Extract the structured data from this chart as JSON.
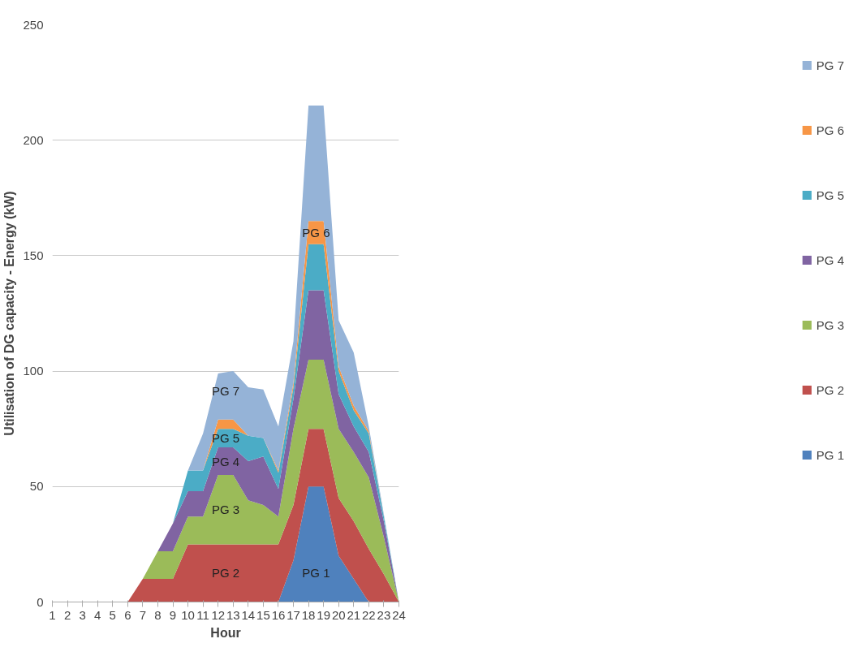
{
  "chart_data": {
    "type": "area",
    "stacked": true,
    "xlabel": "Hour",
    "ylabel": "Utilisation of DG capacity - Energy (kW)",
    "x": [
      1,
      2,
      3,
      4,
      5,
      6,
      7,
      8,
      9,
      10,
      11,
      12,
      13,
      14,
      15,
      16,
      17,
      18,
      19,
      20,
      21,
      22,
      23,
      24
    ],
    "xlim": [
      1,
      24
    ],
    "xticks": [
      1,
      2,
      3,
      4,
      5,
      6,
      7,
      8,
      9,
      10,
      11,
      12,
      13,
      14,
      15,
      16,
      17,
      18,
      19,
      20,
      21,
      22,
      23,
      24
    ],
    "ylim": [
      0,
      250
    ],
    "yticks": [
      0,
      50,
      100,
      150,
      200,
      250
    ],
    "grid": "y",
    "legend": "right",
    "series": [
      {
        "name": "PG 1",
        "color": "#4f81bd",
        "values": [
          0,
          0,
          0,
          0,
          0,
          0,
          0,
          0,
          0,
          0,
          0,
          0,
          0,
          0,
          0,
          0,
          18,
          50,
          50,
          20,
          10,
          0,
          0,
          0
        ]
      },
      {
        "name": "PG 2",
        "color": "#c0504d",
        "values": [
          0,
          0,
          0,
          0,
          0,
          0,
          10,
          10,
          10,
          25,
          25,
          25,
          25,
          25,
          25,
          25,
          24,
          25,
          25,
          25,
          25,
          23,
          12,
          0
        ]
      },
      {
        "name": "PG 3",
        "color": "#9bbb59",
        "values": [
          0,
          0,
          0,
          0,
          0,
          0,
          0,
          12,
          12,
          12,
          12,
          30,
          30,
          19,
          17,
          12,
          33,
          30,
          30,
          30,
          30,
          31,
          16,
          0
        ]
      },
      {
        "name": "PG 4",
        "color": "#8064a2",
        "values": [
          0,
          0,
          0,
          0,
          0,
          0,
          0,
          0,
          12,
          11,
          11,
          12,
          12,
          17,
          21,
          12,
          13,
          30,
          30,
          15,
          11,
          11,
          7,
          0
        ]
      },
      {
        "name": "PG 5",
        "color": "#4bacc6",
        "values": [
          0,
          0,
          0,
          0,
          0,
          0,
          0,
          0,
          0,
          9,
          9,
          8,
          8,
          11,
          8,
          7,
          5,
          20,
          20,
          10,
          7,
          8,
          2,
          0
        ]
      },
      {
        "name": "PG 6",
        "color": "#f79646",
        "values": [
          0,
          0,
          0,
          0,
          0,
          0,
          0,
          0,
          0,
          0,
          0,
          4,
          4,
          0,
          0,
          1,
          2,
          10,
          10,
          2,
          2,
          1,
          0,
          0
        ]
      },
      {
        "name": "PG 7",
        "color": "#95b3d7",
        "values": [
          0,
          0,
          0,
          0,
          0,
          0,
          0,
          0,
          0,
          0,
          16,
          20,
          21,
          21,
          21,
          19,
          18,
          50,
          50,
          20,
          23,
          2,
          1,
          0
        ]
      }
    ],
    "annotations": [
      "PG 1",
      "PG 2",
      "PG 3",
      "PG 4",
      "PG 5",
      "PG 6",
      "PG 7"
    ]
  }
}
